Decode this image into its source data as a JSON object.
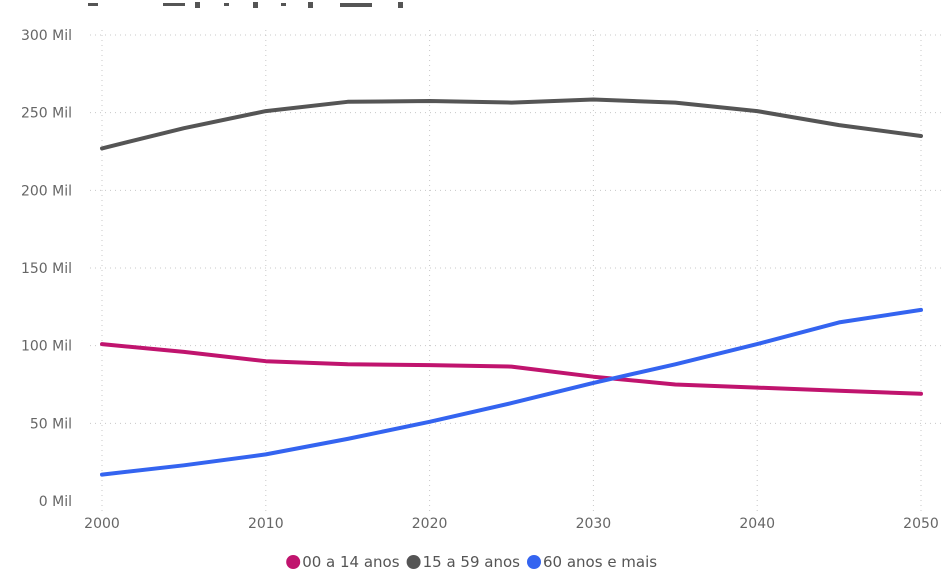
{
  "chart_data": {
    "type": "line",
    "title": "",
    "xlabel": "",
    "ylabel": "",
    "x": [
      2000,
      2005,
      2010,
      2015,
      2020,
      2025,
      2030,
      2035,
      2040,
      2045,
      2050
    ],
    "x_ticks": [
      2000,
      2010,
      2020,
      2030,
      2040,
      2050
    ],
    "x_tick_labels": [
      "2000",
      "2010",
      "2020",
      "2030",
      "2040",
      "2050"
    ],
    "xlim": [
      2000,
      2050
    ],
    "y_ticks": [
      0,
      50000,
      100000,
      150000,
      200000,
      250000,
      300000
    ],
    "y_tick_labels": [
      "0 Mil",
      "50 Mil",
      "100 Mil",
      "150 Mil",
      "200 Mil",
      "250 Mil",
      "300 Mil"
    ],
    "ylim": [
      0,
      300000
    ],
    "grid": true,
    "legend_position": "bottom-center",
    "series": [
      {
        "name": "00 a 14 anos",
        "color": "#c0146e",
        "values": [
          101000,
          96000,
          90000,
          88000,
          87500,
          86500,
          80000,
          75000,
          73000,
          71000,
          69000
        ]
      },
      {
        "name": "15 a 59 anos",
        "color": "#555555",
        "values": [
          227000,
          240000,
          251000,
          257000,
          257500,
          256500,
          258500,
          256500,
          251000,
          242000,
          235000
        ]
      },
      {
        "name": "60 anos e mais",
        "color": "#3464f0",
        "values": [
          17000,
          23000,
          30000,
          40000,
          51000,
          63000,
          76000,
          88000,
          101000,
          115000,
          123000
        ]
      }
    ]
  }
}
